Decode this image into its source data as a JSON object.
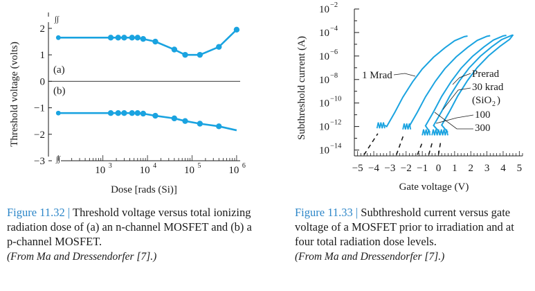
{
  "figures": [
    {
      "caption_number": "Figure 11.32",
      "caption_sep": " | ",
      "caption_text": "Threshold voltage versus total ionizing radiation dose of (a) an n-channel MOSFET and (b) a p-channel MOSFET.",
      "source": "(From Ma and Dressendorfer [7].)"
    },
    {
      "caption_number": "Figure 11.33",
      "caption_sep": " | ",
      "caption_text": "Subthreshold current versus gate voltage of a MOSFET prior to irradiation and at four total radiation dose levels.",
      "source": "(From Ma and Dressendorfer [7].)"
    }
  ],
  "colors": {
    "curve": "#1aa3e0",
    "axis": "#1a1a1a",
    "caption_accent": "#2c86c8"
  },
  "chart_data": [
    {
      "type": "line",
      "xlabel": "Dose [rads (Si)]",
      "ylabel": "Threshold voltage (volts)",
      "x_scale": "log",
      "xlim": [
        60,
        1200000
      ],
      "ylim": [
        -3,
        2.6
      ],
      "x_ticks": [
        {
          "value": 1000,
          "base": "10",
          "exp": "3"
        },
        {
          "value": 10000,
          "base": "10",
          "exp": "4"
        },
        {
          "value": 100000,
          "base": "10",
          "exp": "5"
        },
        {
          "value": 1000000,
          "base": "10",
          "exp": "6"
        }
      ],
      "y_ticks": [
        {
          "value": 2,
          "label": "2"
        },
        {
          "value": 1,
          "label": "1"
        },
        {
          "value": 0,
          "label": "0"
        },
        {
          "value": -1,
          "label": "−1"
        },
        {
          "value": -2,
          "label": "−2"
        },
        {
          "value": -3,
          "label": "−3"
        }
      ],
      "axis_break_symbol": "∫∫",
      "series": [
        {
          "label": "(a)",
          "label_pos_y": 0.45,
          "x": [
            100,
            1500,
            2200,
            3000,
            4500,
            6000,
            8000,
            15000,
            40000,
            70000,
            150000,
            400000,
            1000000
          ],
          "y": [
            1.65,
            1.65,
            1.65,
            1.65,
            1.65,
            1.65,
            1.6,
            1.5,
            1.2,
            1.0,
            1.0,
            1.3,
            1.95
          ],
          "marker_x": [
            1500,
            2200,
            3000,
            4500,
            6000,
            8000,
            15000,
            40000,
            70000,
            150000,
            400000,
            1000000
          ]
        },
        {
          "label": "(b)",
          "label_pos_y": -0.35,
          "x": [
            100,
            1500,
            2200,
            3000,
            4500,
            6000,
            8000,
            15000,
            40000,
            70000,
            150000,
            400000,
            1000000
          ],
          "y": [
            -1.2,
            -1.2,
            -1.2,
            -1.2,
            -1.2,
            -1.2,
            -1.22,
            -1.3,
            -1.4,
            -1.5,
            -1.6,
            -1.7,
            -1.85
          ],
          "marker_x": [
            1500,
            2200,
            3000,
            4500,
            6000,
            8000,
            15000,
            40000,
            70000,
            150000,
            400000
          ]
        }
      ]
    },
    {
      "type": "line",
      "xlabel": "Gate voltage (V)",
      "ylabel": "Subthreshold current (A)",
      "y_scale": "log",
      "xlim": [
        -5.2,
        5.2
      ],
      "ylim_exp": [
        -14.5,
        -2
      ],
      "x_ticks": [
        {
          "value": -5,
          "label": "−5"
        },
        {
          "value": -4,
          "label": "−4"
        },
        {
          "value": -3,
          "label": "−3"
        },
        {
          "value": -2,
          "label": "−2"
        },
        {
          "value": -1,
          "label": "−1"
        },
        {
          "value": 0,
          "label": "0"
        },
        {
          "value": 1,
          "label": "1"
        },
        {
          "value": 2,
          "label": "2"
        },
        {
          "value": 3,
          "label": "3"
        },
        {
          "value": 4,
          "label": "4"
        },
        {
          "value": 5,
          "label": "5"
        }
      ],
      "y_ticks": [
        {
          "exp": -2,
          "base": "10",
          "sup": "−2"
        },
        {
          "exp": -4,
          "base": "10",
          "sup": "−4"
        },
        {
          "exp": -6,
          "base": "10",
          "sup": "−6"
        },
        {
          "exp": -8,
          "base": "10",
          "sup": "−8"
        },
        {
          "exp": -10,
          "base": "10",
          "sup": "−10"
        },
        {
          "exp": -12,
          "base": "10",
          "sup": "−12"
        },
        {
          "exp": -14,
          "base": "10",
          "sup": "−14"
        }
      ],
      "series": [
        {
          "name": "1 Mrad",
          "start": [
            -4.6,
            -14.4
          ],
          "noise_x": -3.6,
          "noise_y": -11.9,
          "shift": -3.0
        },
        {
          "name": "300",
          "start": [
            -2.6,
            -14.4
          ],
          "noise_x": -2.0,
          "noise_y": -12.0,
          "shift": -1.6
        },
        {
          "name": "100",
          "start": [
            -1.3,
            -14.4
          ],
          "noise_x": -0.8,
          "noise_y": -12.5,
          "shift": -0.6
        },
        {
          "name": "30 krad",
          "start": [
            -0.6,
            -14.4
          ],
          "noise_x": -0.2,
          "noise_y": -12.5,
          "shift": -0.1
        },
        {
          "name": "Prerad",
          "start": [
            0.0,
            -14.4
          ],
          "noise_x": 0.3,
          "noise_y": -12.5,
          "shift": 0.4
        }
      ],
      "labels": {
        "mrad": "1 Mrad",
        "prerad": "Prerad",
        "krad30": "30 krad",
        "sio2_open": "(SiO",
        "sio2_sub": "2",
        "sio2_close": ")",
        "d100": "100",
        "d300": "300"
      }
    }
  ]
}
